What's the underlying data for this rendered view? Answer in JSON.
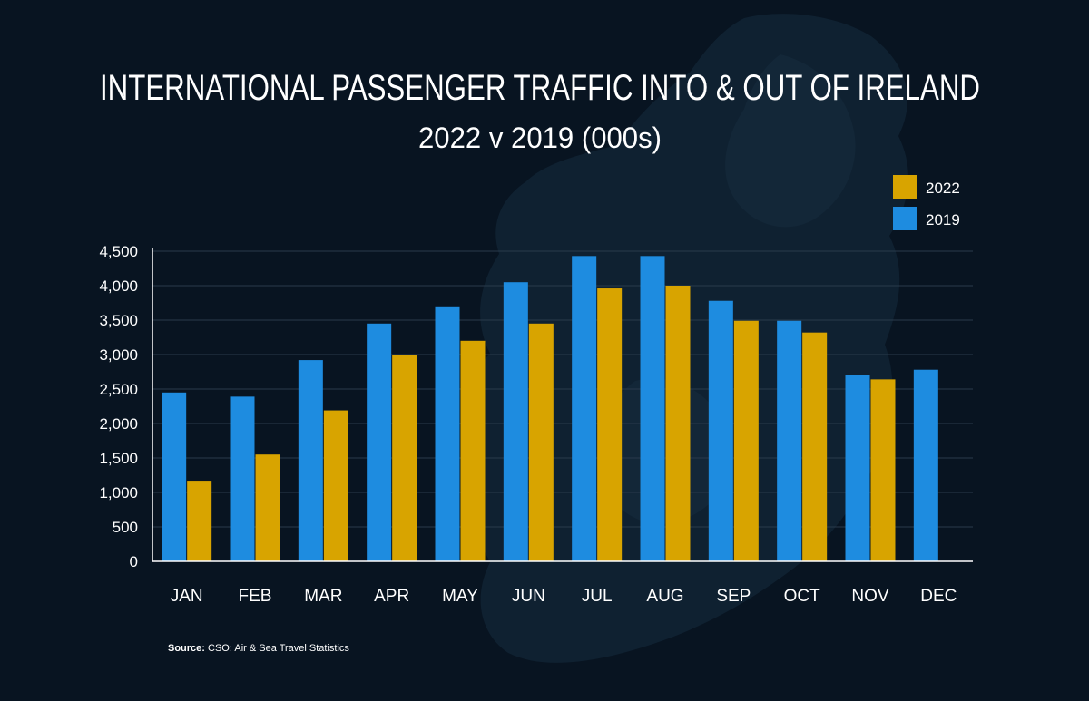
{
  "chart_data": {
    "type": "bar",
    "title": "INTERNATIONAL PASSENGER TRAFFIC INTO & OUT OF IRELAND",
    "subtitle": "2022 v 2019 (000s)",
    "categories": [
      "JAN",
      "FEB",
      "MAR",
      "APR",
      "MAY",
      "JUN",
      "JUL",
      "AUG",
      "SEP",
      "OCT",
      "NOV",
      "DEC"
    ],
    "series": [
      {
        "name": "2019",
        "color": "#1e8ce0",
        "values": [
          2450,
          2390,
          2920,
          3450,
          3700,
          4050,
          4430,
          4430,
          3780,
          3490,
          2710,
          2780
        ]
      },
      {
        "name": "2022",
        "color": "#d8a400",
        "values": [
          1170,
          1550,
          2190,
          3000,
          3200,
          3450,
          3960,
          4000,
          3490,
          3320,
          2640,
          null
        ]
      }
    ],
    "legend_order": [
      "2022",
      "2019"
    ],
    "y_ticks": [
      "0",
      "500",
      "1,000",
      "1,500",
      "2,000",
      "2,500",
      "3,000",
      "3,500",
      "4,000",
      "4,500"
    ],
    "ylim": [
      0,
      4500
    ],
    "grid": true,
    "legend_position": "top-right",
    "xlabel": "",
    "ylabel": ""
  },
  "source": {
    "label": "Source:",
    "text": " CSO: Air & Sea Travel Statistics"
  }
}
